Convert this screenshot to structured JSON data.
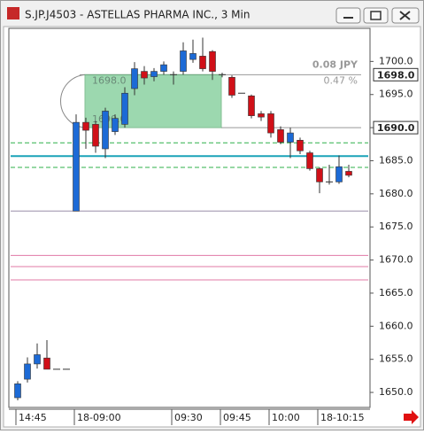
{
  "chart_data": {
    "type": "candlestick",
    "title": "S.JP.J4503 - ASTELLAS PHARMA INC., 3 Min",
    "categories": [
      "14:45",
      null,
      null,
      null,
      null,
      null,
      "18-09:00",
      null,
      null,
      null,
      null,
      null,
      null,
      null,
      null,
      null,
      "09:30",
      null,
      null,
      null,
      null,
      "09:45",
      null,
      null,
      null,
      null,
      "10:00",
      null,
      null,
      null,
      null,
      "18-10:15",
      null,
      null,
      null
    ],
    "open": [
      1649.2,
      1652.0,
      1654.3,
      1655.2,
      1653.5,
      1653.5,
      1677.4,
      1690.8,
      1690.5,
      1686.8,
      1689.4,
      1690.5,
      1695.9,
      1698.5,
      1697.7,
      1698.5,
      1698.0,
      1698.5,
      1700.3,
      1700.8,
      1701.5,
      1698.0,
      1697.6,
      1695.2,
      1694.8,
      1692.1,
      1692.1,
      1689.7,
      1687.8,
      1688.1,
      1686.2,
      1683.8,
      1681.8,
      1681.8,
      1683.4
    ],
    "high": [
      1651.7,
      1655.3,
      1657.4,
      1657.9,
      1653.5,
      1653.5,
      1692.0,
      1691.5,
      1691.0,
      1693.0,
      1692.0,
      1696.1,
      1699.9,
      1699.3,
      1699.0,
      1700.0,
      1698.5,
      1702.9,
      1703.3,
      1703.6,
      1701.7,
      1698.3,
      1697.9,
      1695.2,
      1695.0,
      1692.5,
      1692.5,
      1690.2,
      1690.0,
      1688.5,
      1686.5,
      1684.0,
      1684.4,
      1685.8,
      1684.4
    ],
    "low": [
      1648.8,
      1651.5,
      1653.6,
      1653.5,
      1653.5,
      1653.5,
      1677.4,
      1686.8,
      1686.2,
      1685.4,
      1688.9,
      1690.0,
      1694.9,
      1696.5,
      1697.0,
      1698.0,
      1696.5,
      1698.0,
      1699.8,
      1698.5,
      1697.2,
      1697.6,
      1694.5,
      1695.2,
      1691.4,
      1691.0,
      1688.5,
      1687.5,
      1685.4,
      1686.0,
      1683.5,
      1680.1,
      1681.4,
      1681.5,
      1682.5
    ],
    "close": [
      1651.3,
      1654.3,
      1655.7,
      1653.5,
      1653.5,
      1653.5,
      1690.8,
      1689.6,
      1687.2,
      1692.5,
      1691.4,
      1695.2,
      1698.9,
      1697.5,
      1698.5,
      1699.5,
      1698.0,
      1701.6,
      1701.2,
      1698.9,
      1698.5,
      1698.0,
      1694.9,
      1695.2,
      1691.8,
      1691.6,
      1689.2,
      1687.8,
      1689.2,
      1686.5,
      1683.8,
      1681.8,
      1681.8,
      1684.1,
      1682.8
    ],
    "up_color": "#1c6ad6",
    "down_color": "#d01018",
    "ylim": [
      1648,
      1705
    ],
    "yticks": [
      {
        "value": 1650,
        "label": "1650.0"
      },
      {
        "value": 1655,
        "label": "1655.0"
      },
      {
        "value": 1660,
        "label": "1660.0"
      },
      {
        "value": 1665,
        "label": "1665.0"
      },
      {
        "value": 1670,
        "label": "1670.0"
      },
      {
        "value": 1675,
        "label": "1675.0"
      },
      {
        "value": 1680,
        "label": "1680.0"
      },
      {
        "value": 1685,
        "label": "1685.0"
      },
      {
        "value": 1690,
        "label": "1690.0"
      },
      {
        "value": 1695,
        "label": "1695.0"
      },
      {
        "value": 1700,
        "label": "1700.0"
      }
    ],
    "price_markers": [
      {
        "value": 1698,
        "label": "1698.0"
      },
      {
        "value": 1690,
        "label": "1690.0"
      }
    ],
    "measure_text": [
      "0.08  JPY",
      "0.47 %"
    ],
    "reference_lines": [
      {
        "value": 1687.7,
        "color": "#2fb04a",
        "style": "dashed"
      },
      {
        "value": 1685.7,
        "color": "#1aa3b8",
        "style": "solid"
      },
      {
        "value": 1684.0,
        "color": "#2fb04a",
        "style": "dashed"
      },
      {
        "value": 1677.4,
        "color": "#9a8ea8",
        "style": "solid"
      },
      {
        "value": 1670.7,
        "color": "#e07aa6",
        "style": "solid"
      },
      {
        "value": 1669.0,
        "color": "#e07aa6",
        "style": "solid"
      },
      {
        "value": 1667.0,
        "color": "#e07aa6",
        "style": "solid"
      }
    ]
  }
}
